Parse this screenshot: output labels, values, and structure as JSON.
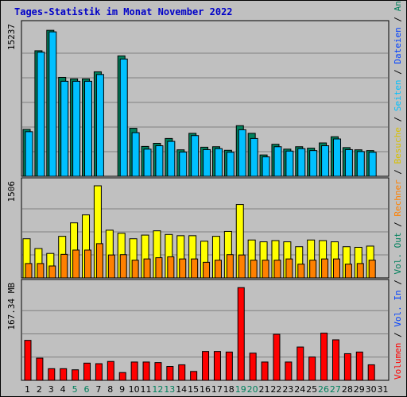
{
  "title": "Tages-Statistik im Monat November 2022",
  "colors": {
    "background": "#c0c0c0",
    "title": "#0000c8",
    "hits": "#00805c",
    "files": "#0040ff",
    "pages": "#00c0ff",
    "visits": "#ffff00",
    "sites": "#ff8000",
    "kbytes": "#ff0000",
    "weekday_label": "#000000",
    "weekend_label": "#00805c"
  },
  "right_labels": {
    "top": [
      {
        "text": "Anfragen",
        "color": "#00805c"
      },
      {
        "text": " / ",
        "color": "#000000"
      },
      {
        "text": "Dateien",
        "color": "#0040ff"
      },
      {
        "text": " / ",
        "color": "#000000"
      },
      {
        "text": "Seiten",
        "color": "#00c0ff"
      },
      {
        "text": " / ",
        "color": "#000000"
      },
      {
        "text": "Besuche",
        "color": "#d8c000"
      },
      {
        "text": " / ",
        "color": "#000000"
      },
      {
        "text": "Rechner",
        "color": "#ff8000"
      },
      {
        "text": " / ",
        "color": "#000000"
      },
      {
        "text": "Vol. Out",
        "color": "#00805c"
      },
      {
        "text": " / ",
        "color": "#000000"
      },
      {
        "text": "Vol. In",
        "color": "#0040ff"
      },
      {
        "text": " / ",
        "color": "#000000"
      },
      {
        "text": "Volumen",
        "color": "#ff0000"
      }
    ]
  },
  "chart_data": [
    {
      "type": "bar",
      "panel": "hits-files-pages",
      "ymax_label": "15237",
      "ylim": [
        0,
        15237
      ],
      "x": [
        "1",
        "2",
        "3",
        "4",
        "5",
        "6",
        "7",
        "8",
        "9",
        "10",
        "11",
        "12",
        "13",
        "14",
        "15",
        "16",
        "17",
        "18",
        "19",
        "20",
        "21",
        "22",
        "23",
        "24",
        "25",
        "26",
        "27",
        "28",
        "29",
        "30",
        "31"
      ],
      "series": [
        {
          "name": "Anfragen",
          "values": [
            4840,
            12950,
            15060,
            10200,
            10050,
            10050,
            10780,
            0,
            12420,
            4950,
            3080,
            3400,
            3900,
            2730,
            4430,
            3000,
            3050,
            2680,
            5220,
            4430,
            2200,
            3300,
            2800,
            3050,
            2900,
            3440,
            4080,
            2960,
            2730,
            2650,
            0
          ]
        },
        {
          "name": "Dateien",
          "values": [
            4600,
            12800,
            14900,
            9800,
            9800,
            9800,
            10500,
            0,
            12100,
            4500,
            2800,
            3150,
            3600,
            2500,
            4200,
            2750,
            2850,
            2480,
            4800,
            3900,
            2000,
            3050,
            2600,
            2850,
            2650,
            3150,
            3850,
            2750,
            2550,
            2480,
            0
          ]
        }
      ]
    },
    {
      "type": "bar",
      "panel": "visits-sites",
      "ymax_label": "1506",
      "ylim": [
        0,
        1506
      ],
      "x": [
        "1",
        "2",
        "3",
        "4",
        "5",
        "6",
        "7",
        "8",
        "9",
        "10",
        "11",
        "12",
        "13",
        "14",
        "15",
        "16",
        "17",
        "18",
        "19",
        "20",
        "21",
        "22",
        "23",
        "24",
        "25",
        "26",
        "27",
        "28",
        "29",
        "30",
        "31"
      ],
      "series": [
        {
          "name": "Besuche",
          "values": [
            640,
            480,
            400,
            680,
            900,
            1030,
            1506,
            780,
            730,
            640,
            700,
            770,
            710,
            690,
            690,
            600,
            680,
            760,
            1200,
            620,
            590,
            610,
            590,
            510,
            620,
            610,
            590,
            510,
            500,
            520,
            0
          ]
        },
        {
          "name": "Rechner",
          "values": [
            235,
            235,
            195,
            385,
            455,
            455,
            560,
            375,
            380,
            290,
            310,
            330,
            345,
            310,
            310,
            255,
            290,
            380,
            375,
            290,
            290,
            290,
            310,
            225,
            290,
            310,
            310,
            225,
            235,
            290,
            0
          ]
        }
      ]
    },
    {
      "type": "bar",
      "panel": "volume",
      "ymax_label": "167.34 MB",
      "ylim": [
        0,
        167.34
      ],
      "x": [
        "1",
        "2",
        "3",
        "4",
        "5",
        "6",
        "7",
        "8",
        "9",
        "10",
        "11",
        "12",
        "13",
        "14",
        "15",
        "16",
        "17",
        "18",
        "19",
        "20",
        "21",
        "22",
        "23",
        "24",
        "25",
        "26",
        "27",
        "28",
        "29",
        "30",
        "31"
      ],
      "series": [
        {
          "name": "Volumen",
          "values": [
            72,
            40,
            21,
            21,
            19,
            31,
            30,
            34,
            14,
            33,
            33,
            32,
            25,
            28,
            16,
            52,
            52,
            51,
            167,
            49,
            33,
            83,
            33,
            60,
            42,
            85,
            73,
            48,
            51,
            28,
            0
          ]
        }
      ]
    }
  ],
  "weekend_days": [
    "5",
    "6",
    "12",
    "13",
    "19",
    "20",
    "26",
    "27"
  ]
}
